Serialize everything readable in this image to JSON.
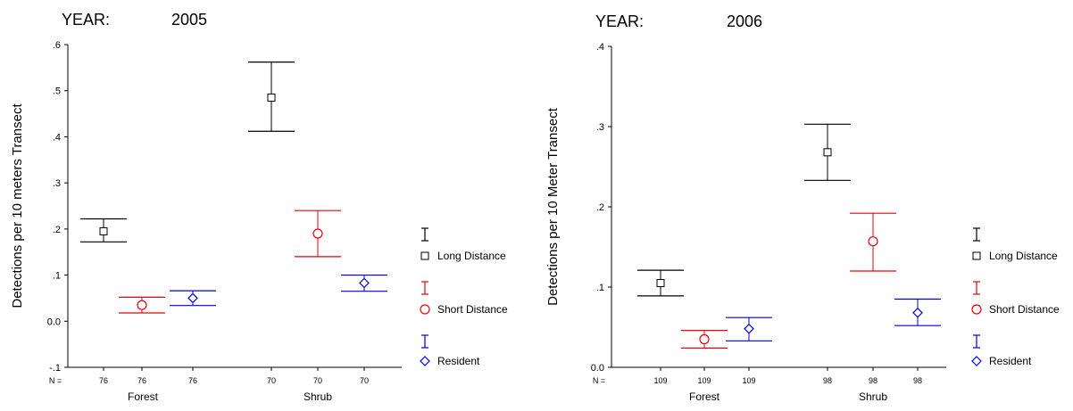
{
  "chart_data": [
    {
      "type": "errorbar",
      "year_label": "YEAR:",
      "year_value": "2005",
      "ylabel": "Detections per 10 meters Transect",
      "ylim": [
        -0.1,
        0.6
      ],
      "yticks": [
        -0.1,
        0.0,
        0.1,
        0.2,
        0.3,
        0.4,
        0.5,
        0.6
      ],
      "ytick_labels": [
        "-.1",
        "0.0",
        ".1",
        ".2",
        ".3",
        ".4",
        ".5",
        ".6"
      ],
      "n_label": "N =",
      "categories": [
        "Forest",
        "Shrub"
      ],
      "series": [
        {
          "name": "Long Distance",
          "marker": "square",
          "color": "#000000",
          "points": [
            {
              "cat": 0,
              "mean": 0.195,
              "low": 0.172,
              "high": 0.222,
              "n": "76"
            },
            {
              "cat": 1,
              "mean": 0.485,
              "low": 0.412,
              "high": 0.562,
              "n": "70"
            }
          ]
        },
        {
          "name": "Short Distance",
          "marker": "circle",
          "color": "#e8000b",
          "points": [
            {
              "cat": 0,
              "mean": 0.035,
              "low": 0.018,
              "high": 0.052,
              "n": "76"
            },
            {
              "cat": 1,
              "mean": 0.19,
              "low": 0.14,
              "high": 0.24,
              "n": "70"
            }
          ]
        },
        {
          "name": "Resident",
          "marker": "diamond",
          "color": "#0000dd",
          "points": [
            {
              "cat": 0,
              "mean": 0.05,
              "low": 0.034,
              "high": 0.066,
              "n": "76"
            },
            {
              "cat": 1,
              "mean": 0.083,
              "low": 0.065,
              "high": 0.1,
              "n": "70"
            }
          ]
        }
      ]
    },
    {
      "type": "errorbar",
      "year_label": "YEAR:",
      "year_value": "2006",
      "ylabel": "Detections per 10 Meter Transect",
      "ylim": [
        0.0,
        0.4
      ],
      "yticks": [
        0.0,
        0.1,
        0.2,
        0.3,
        0.4
      ],
      "ytick_labels": [
        "0.0",
        ".1",
        ".2",
        ".3",
        ".4"
      ],
      "n_label": "N =",
      "categories": [
        "Forest",
        "Shrub"
      ],
      "series": [
        {
          "name": "Long Distance",
          "marker": "square",
          "color": "#000000",
          "points": [
            {
              "cat": 0,
              "mean": 0.105,
              "low": 0.089,
              "high": 0.121,
              "n": "109"
            },
            {
              "cat": 1,
              "mean": 0.268,
              "low": 0.233,
              "high": 0.303,
              "n": "98"
            }
          ]
        },
        {
          "name": "Short Distance",
          "marker": "circle",
          "color": "#e8000b",
          "points": [
            {
              "cat": 0,
              "mean": 0.035,
              "low": 0.024,
              "high": 0.046,
              "n": "109"
            },
            {
              "cat": 1,
              "mean": 0.157,
              "low": 0.12,
              "high": 0.192,
              "n": "98"
            }
          ]
        },
        {
          "name": "Resident",
          "marker": "diamond",
          "color": "#0000dd",
          "points": [
            {
              "cat": 0,
              "mean": 0.048,
              "low": 0.033,
              "high": 0.062,
              "n": "109"
            },
            {
              "cat": 1,
              "mean": 0.068,
              "low": 0.052,
              "high": 0.085,
              "n": "98"
            }
          ]
        }
      ]
    }
  ]
}
